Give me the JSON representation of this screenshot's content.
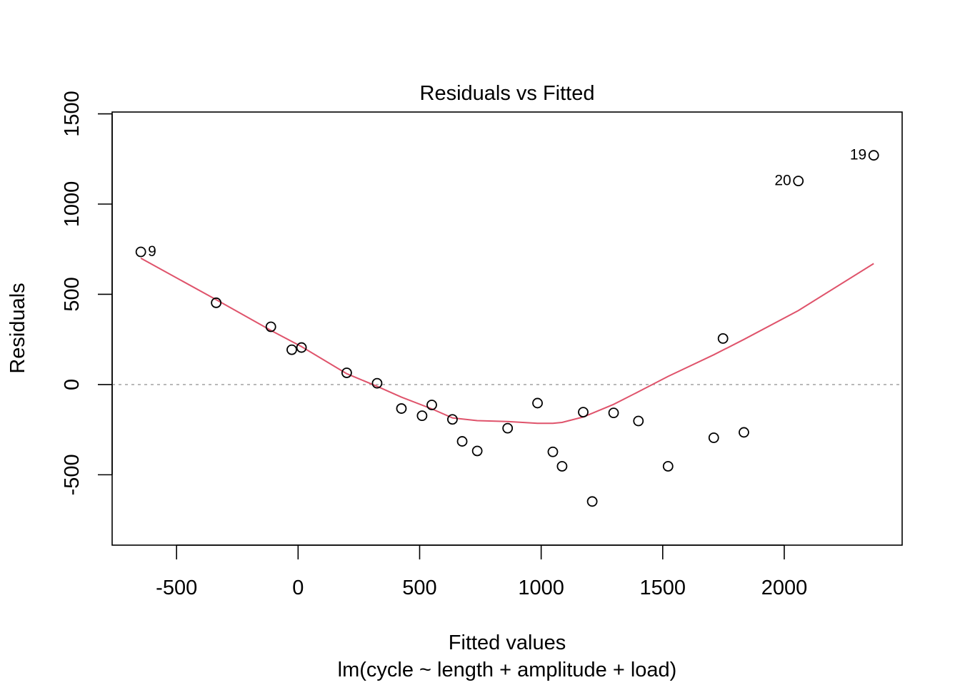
{
  "chart_data": {
    "type": "scatter",
    "title": "Residuals vs Fitted",
    "xlabel": "Fitted values",
    "subtitle": "lm(cycle ~ length + amplitude + load)",
    "ylabel": "Residuals",
    "xlim": [
      -765,
      2485
    ],
    "ylim": [
      -890,
      1510
    ],
    "x_ticks": [
      -500,
      0,
      500,
      1000,
      1500,
      2000
    ],
    "x_tick_labels": [
      "-500",
      "0",
      "500",
      "1000",
      "1500",
      "2000"
    ],
    "y_ticks": [
      -500,
      0,
      500,
      1000,
      1500
    ],
    "y_tick_labels": [
      "-500",
      "0",
      "500",
      "1000",
      "1500"
    ],
    "reference_line_y": 0,
    "points": [
      {
        "x": -647,
        "y": 735
      },
      {
        "x": -337,
        "y": 453
      },
      {
        "x": -112,
        "y": 320
      },
      {
        "x": -26,
        "y": 193
      },
      {
        "x": 14,
        "y": 205
      },
      {
        "x": 200,
        "y": 65
      },
      {
        "x": 325,
        "y": 7
      },
      {
        "x": 425,
        "y": -133
      },
      {
        "x": 510,
        "y": -173
      },
      {
        "x": 550,
        "y": -113
      },
      {
        "x": 635,
        "y": -193
      },
      {
        "x": 675,
        "y": -315
      },
      {
        "x": 737,
        "y": -368
      },
      {
        "x": 862,
        "y": -242
      },
      {
        "x": 985,
        "y": -103
      },
      {
        "x": 1048,
        "y": -373
      },
      {
        "x": 1086,
        "y": -453
      },
      {
        "x": 1173,
        "y": -153
      },
      {
        "x": 1210,
        "y": -648
      },
      {
        "x": 1298,
        "y": -157
      },
      {
        "x": 1400,
        "y": -202
      },
      {
        "x": 1522,
        "y": -453
      },
      {
        "x": 1710,
        "y": -295
      },
      {
        "x": 1748,
        "y": 255
      },
      {
        "x": 1834,
        "y": -265
      },
      {
        "x": 2058,
        "y": 1128
      },
      {
        "x": 2368,
        "y": 1270
      }
    ],
    "point_labels": [
      {
        "text": "9",
        "x": -647,
        "y": 735,
        "side": "right"
      },
      {
        "text": "20",
        "x": 2058,
        "y": 1128,
        "side": "left"
      },
      {
        "text": "19",
        "x": 2368,
        "y": 1270,
        "side": "left"
      }
    ],
    "smooth_line": {
      "color": "#df536b",
      "x": [
        -647,
        -337,
        -112,
        14,
        200,
        325,
        425,
        550,
        635,
        737,
        862,
        985,
        1048,
        1086,
        1173,
        1298,
        1400,
        1522,
        1710,
        1834,
        2058,
        2368
      ],
      "y": [
        700,
        470,
        300,
        210,
        60,
        -10,
        -70,
        -135,
        -185,
        -200,
        -205,
        -215,
        -215,
        -210,
        -180,
        -110,
        -40,
        45,
        165,
        250,
        410,
        670
      ]
    },
    "colors": {
      "points": "#000000",
      "reference_line": "#aaaaaa"
    }
  }
}
